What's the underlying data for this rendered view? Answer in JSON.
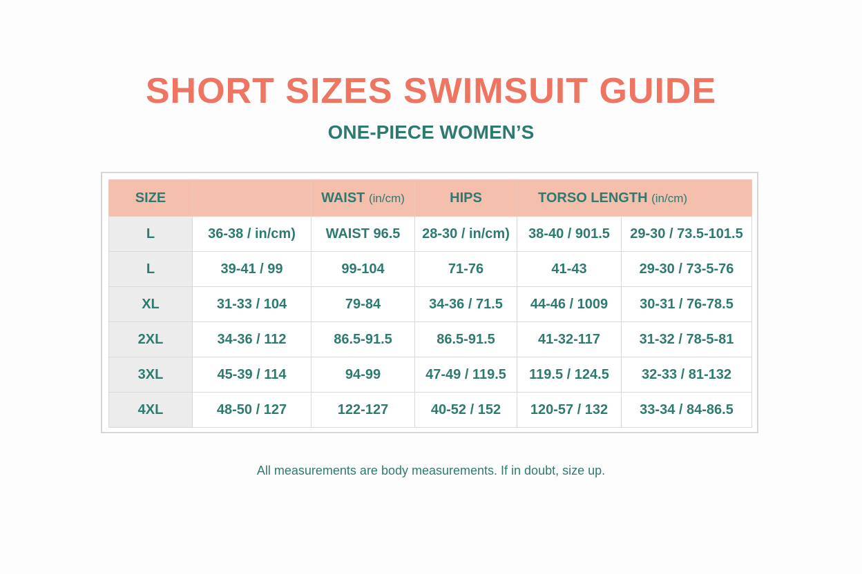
{
  "title": "SHORT SIZES SWIMSUIT GUIDE",
  "subtitle": "ONE-PIECE WOMEN’S",
  "table": {
    "header": {
      "size": "SIZE",
      "waist": "WAIST",
      "waist_unit": "(in/cm)",
      "hips": "HIPS",
      "torso": "TORSO LENGTH",
      "torso_unit": "(in/cm)"
    },
    "rows": [
      [
        "L",
        "36-38 / in/cm)",
        "WAIST 96.5",
        "28-30 / in/cm)",
        "38-40 / 901.5",
        "29-30 / 73.5-101.5"
      ],
      [
        "L",
        "39-41 / 99",
        "99-104",
        "71-76",
        "41-43",
        "29-30 / 73-5-76"
      ],
      [
        "XL",
        "31-33 / 104",
        "79-84",
        "34-36 / 71.5",
        "44-46 / 1009",
        "30-31 / 76-78.5"
      ],
      [
        "2XL",
        "34-36 / 112",
        "86.5-91.5",
        "86.5-91.5",
        "41-32-117",
        "31-32 / 78-5-81"
      ],
      [
        "3XL",
        "45-39 / 114",
        "94-99",
        "47-49 / 119.5",
        "119.5 / 124.5",
        "32-33 / 81-132"
      ],
      [
        "4XL",
        "48-50 / 127",
        "122-127",
        "40-52 / 152",
        "120-57 / 132",
        "33-34 / 84-86.5"
      ]
    ]
  },
  "footnote": "All measurements are body measurements. If in doubt, size up."
}
